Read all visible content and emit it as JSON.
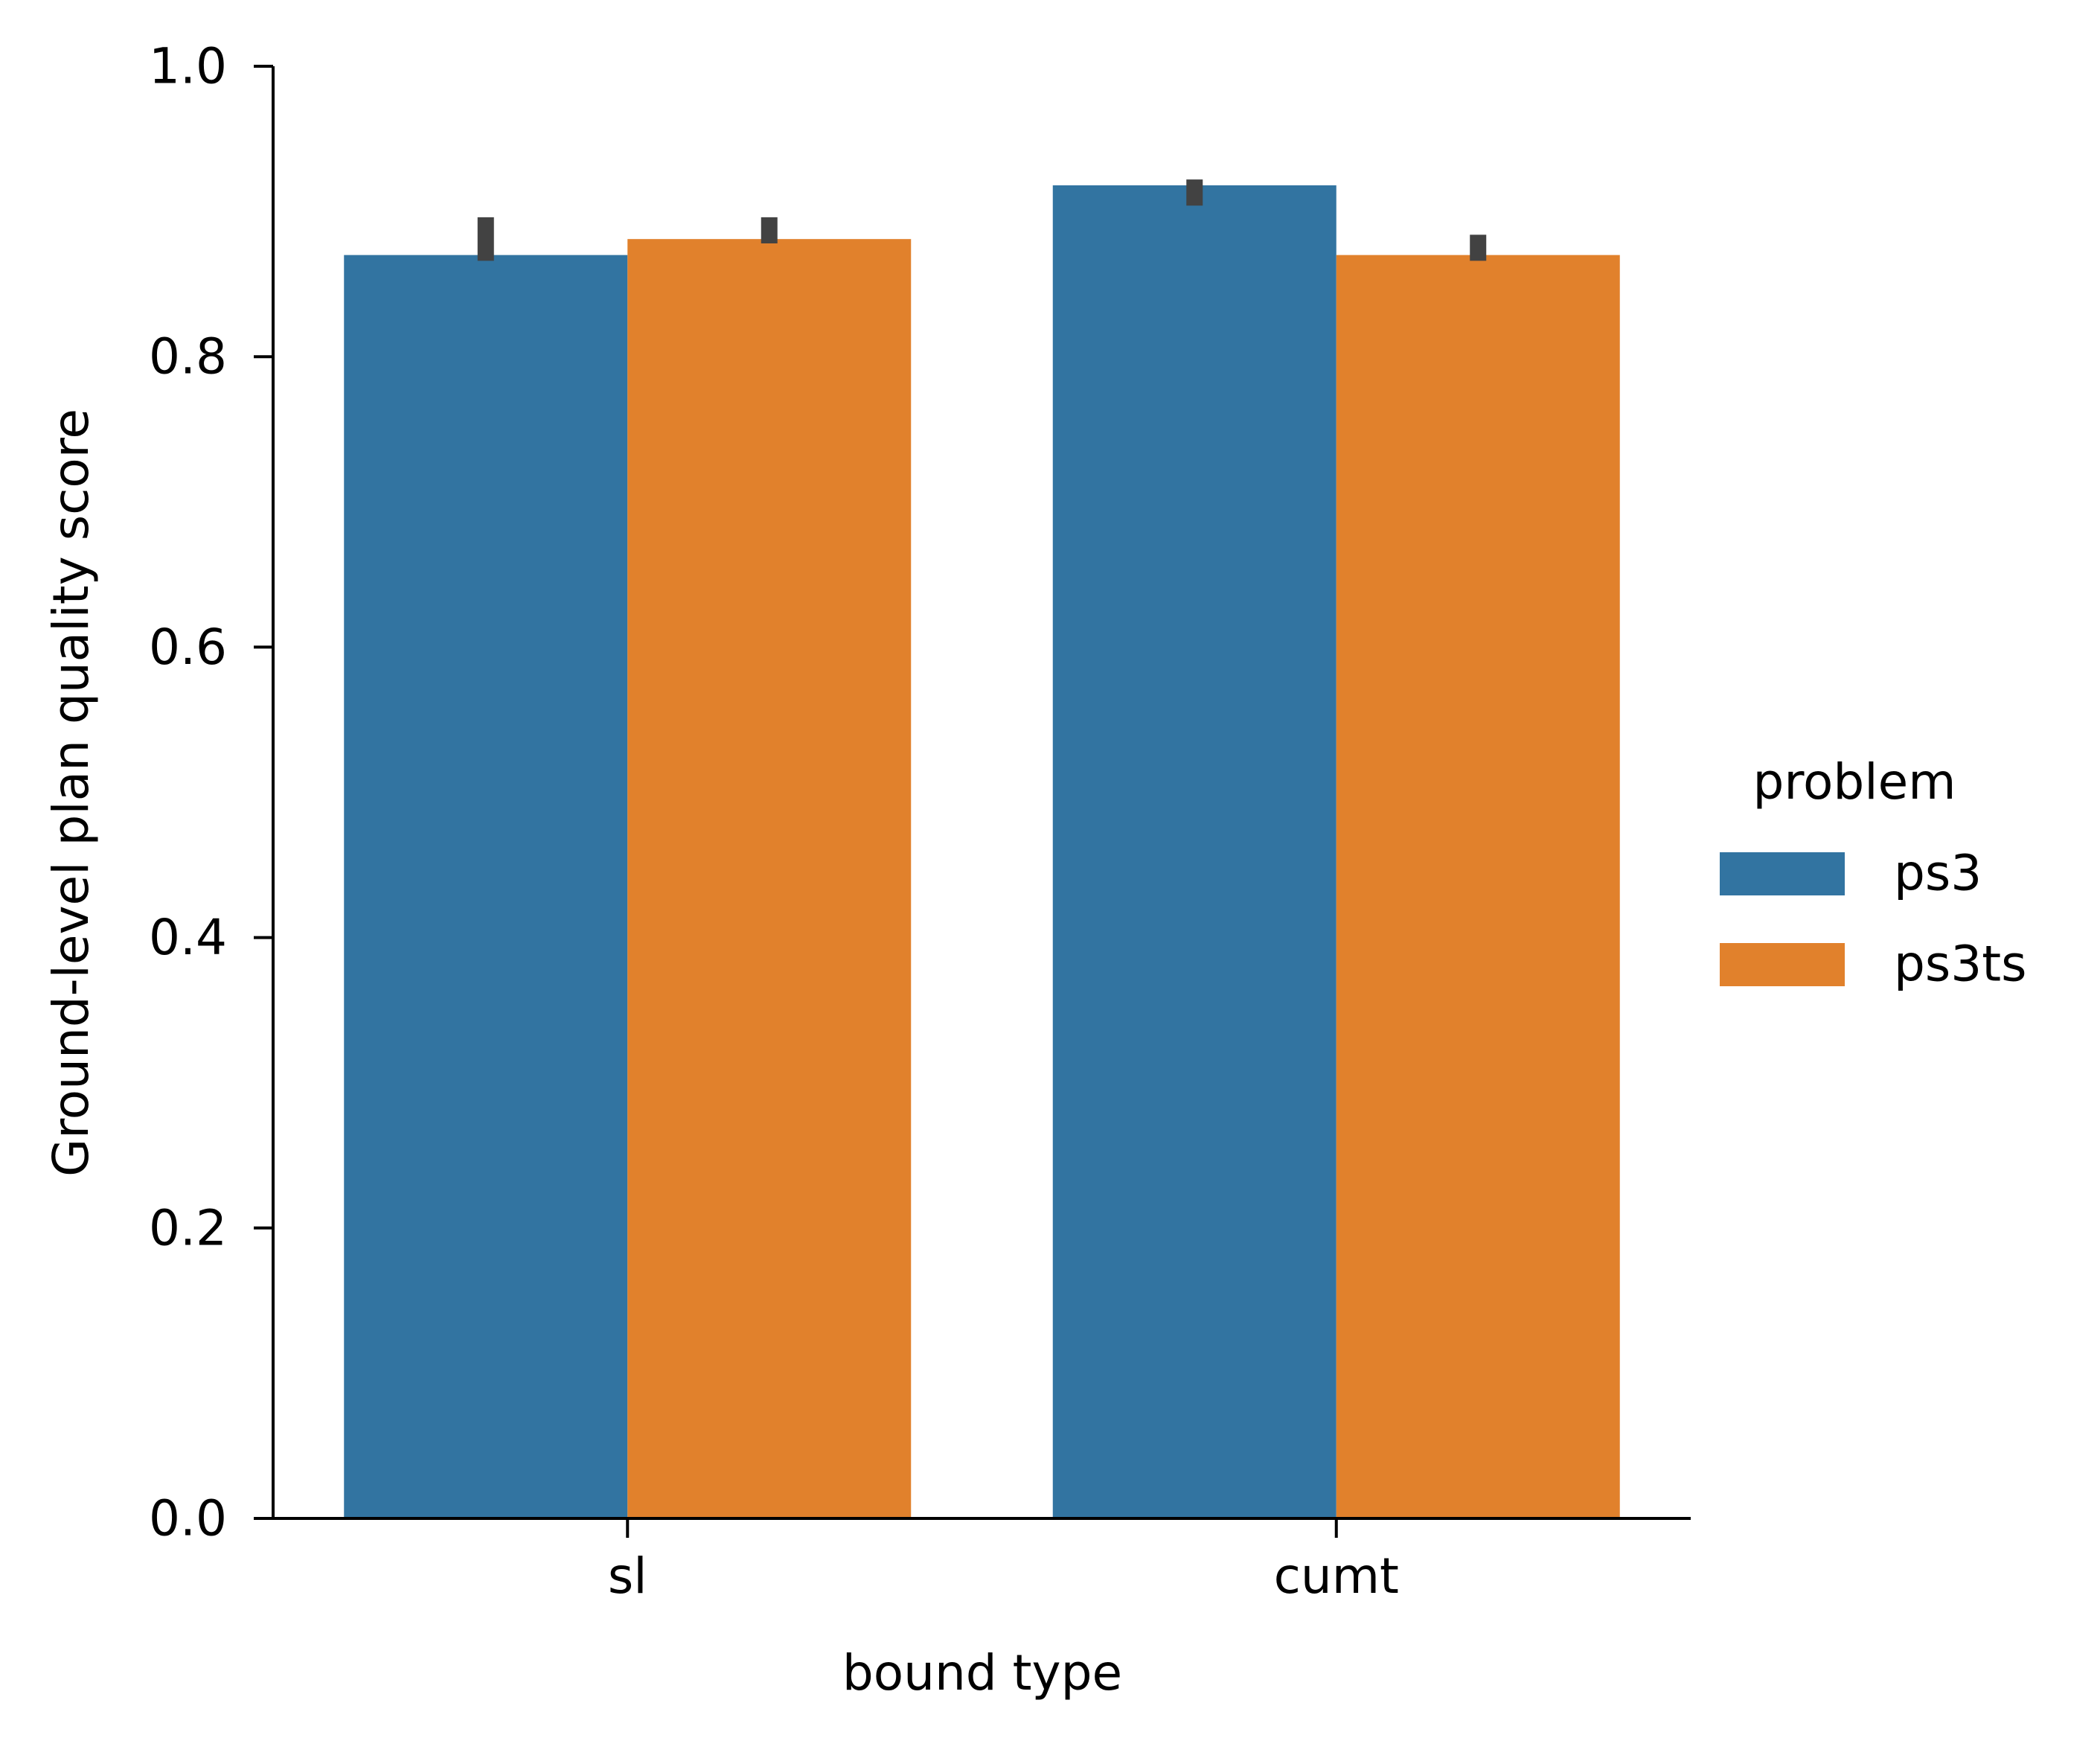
{
  "chart_data": {
    "type": "bar",
    "title": "",
    "xlabel": "bound type",
    "ylabel": "Ground-level plan quality score",
    "categories": [
      "sl",
      "cumt"
    ],
    "ylim": [
      0,
      1.0
    ],
    "yticks": [
      "0.0",
      "0.2",
      "0.4",
      "0.6",
      "0.8",
      "1.0"
    ],
    "series": [
      {
        "name": "ps3",
        "color": "#3274a1",
        "values": [
          0.87,
          0.918
        ],
        "err_low": [
          0.866,
          0.904
        ],
        "err_high": [
          0.896,
          0.922
        ]
      },
      {
        "name": "ps3ts",
        "color": "#e1812c",
        "values": [
          0.881,
          0.87
        ],
        "err_low": [
          0.878,
          0.866
        ],
        "err_high": [
          0.896,
          0.884
        ]
      }
    ],
    "legend": {
      "title": "problem",
      "placement": "right"
    },
    "grid": false
  }
}
